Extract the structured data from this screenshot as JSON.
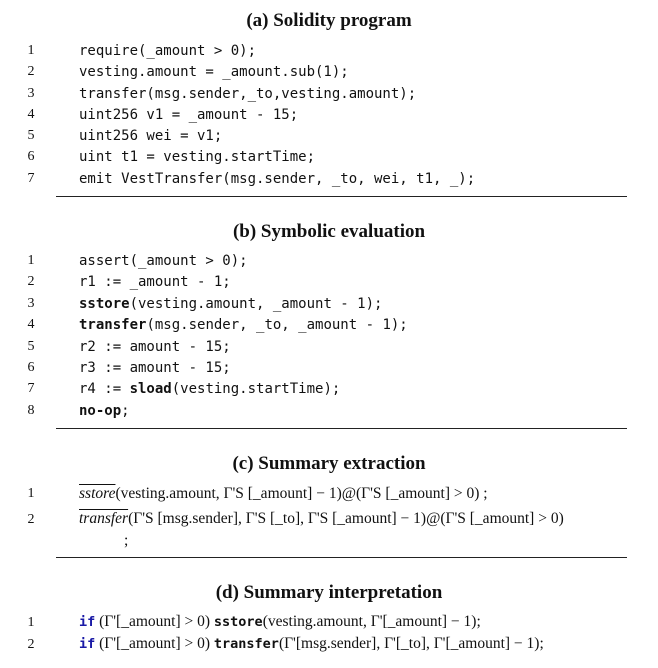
{
  "a": {
    "title": "(a) Solidity program",
    "lines": [
      {
        "n": "1",
        "text": "require(_amount > 0);"
      },
      {
        "n": "2",
        "text": "vesting.amount = _amount.sub(1);"
      },
      {
        "n": "3",
        "text": "transfer(msg.sender,_to,vesting.amount);"
      },
      {
        "n": "4",
        "text": "uint256 v1 = _amount - 15;"
      },
      {
        "n": "5",
        "text": "uint256 wei = v1;"
      },
      {
        "n": "6",
        "text": "uint t1 = vesting.startTime;"
      },
      {
        "n": "7",
        "text": "emit VestTransfer(msg.sender, _to, wei, t1, _);"
      }
    ]
  },
  "b": {
    "title": "(b) Symbolic evaluation",
    "lines": [
      {
        "n": "1",
        "pre": "assert(_amount > 0);",
        "kw": "",
        "post": ""
      },
      {
        "n": "2",
        "pre": "r1 := _amount - 1;",
        "kw": "",
        "post": ""
      },
      {
        "n": "3",
        "pre": "",
        "kw": "sstore",
        "post": "(vesting.amount, _amount - 1);"
      },
      {
        "n": "4",
        "pre": "",
        "kw": "transfer",
        "post": "(msg.sender, _to, _amount - 1);"
      },
      {
        "n": "5",
        "pre": "r2 := amount - 15;",
        "kw": "",
        "post": ""
      },
      {
        "n": "6",
        "pre": "r3 := amount - 15;",
        "kw": "",
        "post": ""
      },
      {
        "n": "7",
        "pre": "r4 := ",
        "kw": "sload",
        "post": "(vesting.startTime);"
      },
      {
        "n": "8",
        "pre": "",
        "kw": "no-op",
        "post": ";"
      }
    ]
  },
  "c": {
    "title": "(c) Summary extraction",
    "lines": [
      {
        "n": "1",
        "op": "sstore",
        "args": "(vesting.amount, Γ'S [_amount] − 1)@(Γ'S [_amount] > 0) ;"
      },
      {
        "n": "2",
        "op": "transfer",
        "args": "(Γ'S [msg.sender], Γ'S [_to], Γ'S [_amount] − 1)@(Γ'S [_amount] > 0)"
      }
    ],
    "continuation": ";"
  },
  "d": {
    "title": "(d) Summary interpretation",
    "lines": [
      {
        "n": "1",
        "if": "if",
        "cond": " (Γ'[_amount] > 0) ",
        "op": "sstore",
        "args": "(vesting.amount, Γ'[_amount] − 1);"
      },
      {
        "n": "2",
        "if": "if",
        "cond": " (Γ'[_amount] > 0) ",
        "op": "transfer",
        "args": "(Γ'[msg.sender], Γ'[_to], Γ'[_amount] − 1);"
      }
    ]
  }
}
